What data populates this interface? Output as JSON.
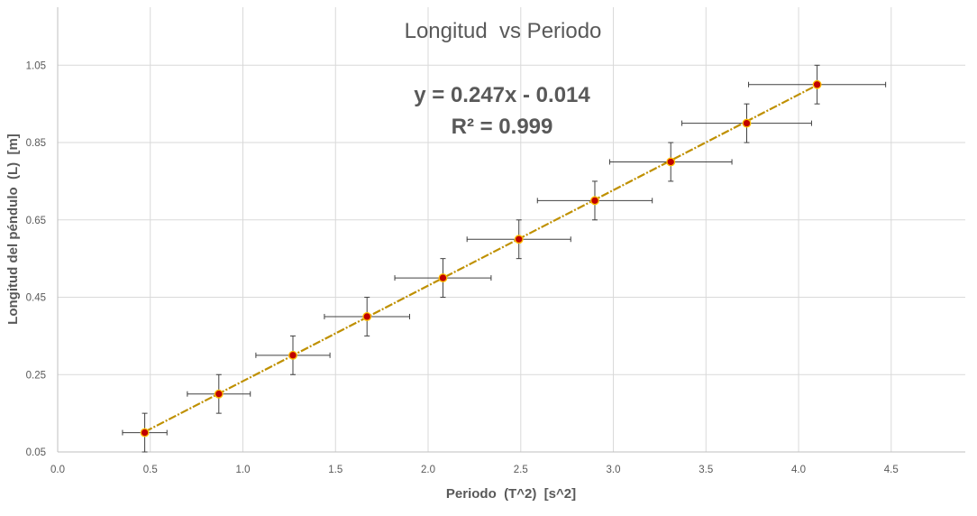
{
  "chart_data": {
    "type": "scatter",
    "title": "Longitud  vs Periodo",
    "xlabel": "Periodo  (T^2)  [s^2]",
    "ylabel": "Longitud del péndulo  (L)  [m]",
    "xlim": [
      0,
      4.9
    ],
    "ylim": [
      0.05,
      1.2
    ],
    "xticks": [
      0.0,
      0.5,
      1.0,
      1.5,
      2.0,
      2.5,
      3.0,
      3.5,
      4.0,
      4.5
    ],
    "xtick_labels": [
      "0.0",
      "0.5",
      "1.0",
      "1.5",
      "2.0",
      "2.5",
      "3.0",
      "3.5",
      "4.0",
      "4.5"
    ],
    "yticks": [
      0.05,
      0.25,
      0.45,
      0.65,
      0.85,
      1.05
    ],
    "ytick_labels": [
      "0.05",
      "0.25",
      "0.45",
      "0.65",
      "0.85",
      "1.05"
    ],
    "grid": true,
    "series": [
      {
        "points": [
          {
            "x": 0.47,
            "y": 0.1,
            "xerr": 0.12,
            "yerr": 0.05
          },
          {
            "x": 0.87,
            "y": 0.2,
            "xerr": 0.17,
            "yerr": 0.05
          },
          {
            "x": 1.27,
            "y": 0.3,
            "xerr": 0.2,
            "yerr": 0.05
          },
          {
            "x": 1.67,
            "y": 0.4,
            "xerr": 0.23,
            "yerr": 0.05
          },
          {
            "x": 2.08,
            "y": 0.5,
            "xerr": 0.26,
            "yerr": 0.05
          },
          {
            "x": 2.49,
            "y": 0.6,
            "xerr": 0.28,
            "yerr": 0.05
          },
          {
            "x": 2.9,
            "y": 0.7,
            "xerr": 0.31,
            "yerr": 0.05
          },
          {
            "x": 3.31,
            "y": 0.8,
            "xerr": 0.33,
            "yerr": 0.05
          },
          {
            "x": 3.72,
            "y": 0.9,
            "xerr": 0.35,
            "yerr": 0.05
          },
          {
            "x": 4.1,
            "y": 1.0,
            "xerr": 0.37,
            "yerr": 0.05
          }
        ]
      }
    ],
    "trendline": {
      "slope": 0.247,
      "intercept": -0.014,
      "x_start": 0.47,
      "x_end": 4.1,
      "equation_text": "y = 0.247x - 0.014",
      "r2_text": "R² = 0.999"
    },
    "colors": {
      "marker_fill": "#c00000",
      "marker_stroke": "#ffc000",
      "trendline": "#bf9000",
      "errorbar": "#404040",
      "grid": "#d9d9d9",
      "text": "#595959"
    }
  }
}
